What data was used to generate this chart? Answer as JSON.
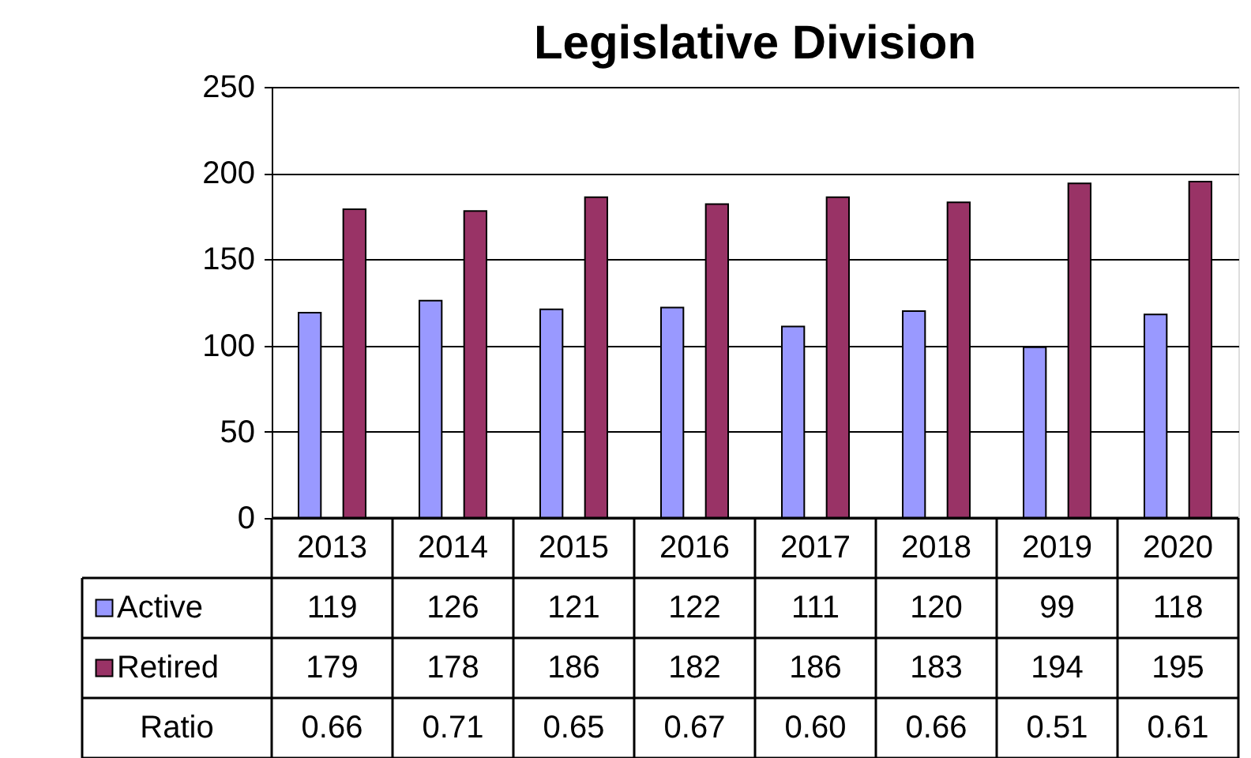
{
  "chart_data": {
    "type": "bar",
    "title": "Legislative Division",
    "categories": [
      "2013",
      "2014",
      "2015",
      "2016",
      "2017",
      "2018",
      "2019",
      "2020"
    ],
    "series": [
      {
        "name": "Active",
        "color": "#9999ff",
        "values": [
          119,
          126,
          121,
          122,
          111,
          120,
          99,
          118
        ]
      },
      {
        "name": "Retired",
        "color": "#993366",
        "values": [
          179,
          178,
          186,
          182,
          186,
          183,
          194,
          195
        ]
      }
    ],
    "ylim": [
      0,
      250
    ],
    "yticks": [
      0,
      50,
      100,
      150,
      200,
      250
    ],
    "grid": "y",
    "legend": "bottom",
    "data_labels": true,
    "annotations": [
      "Ratio",
      "0.66",
      "0.71",
      "0.65",
      "0.67",
      "0.60",
      "0.66",
      "0.51",
      "0.61"
    ]
  }
}
